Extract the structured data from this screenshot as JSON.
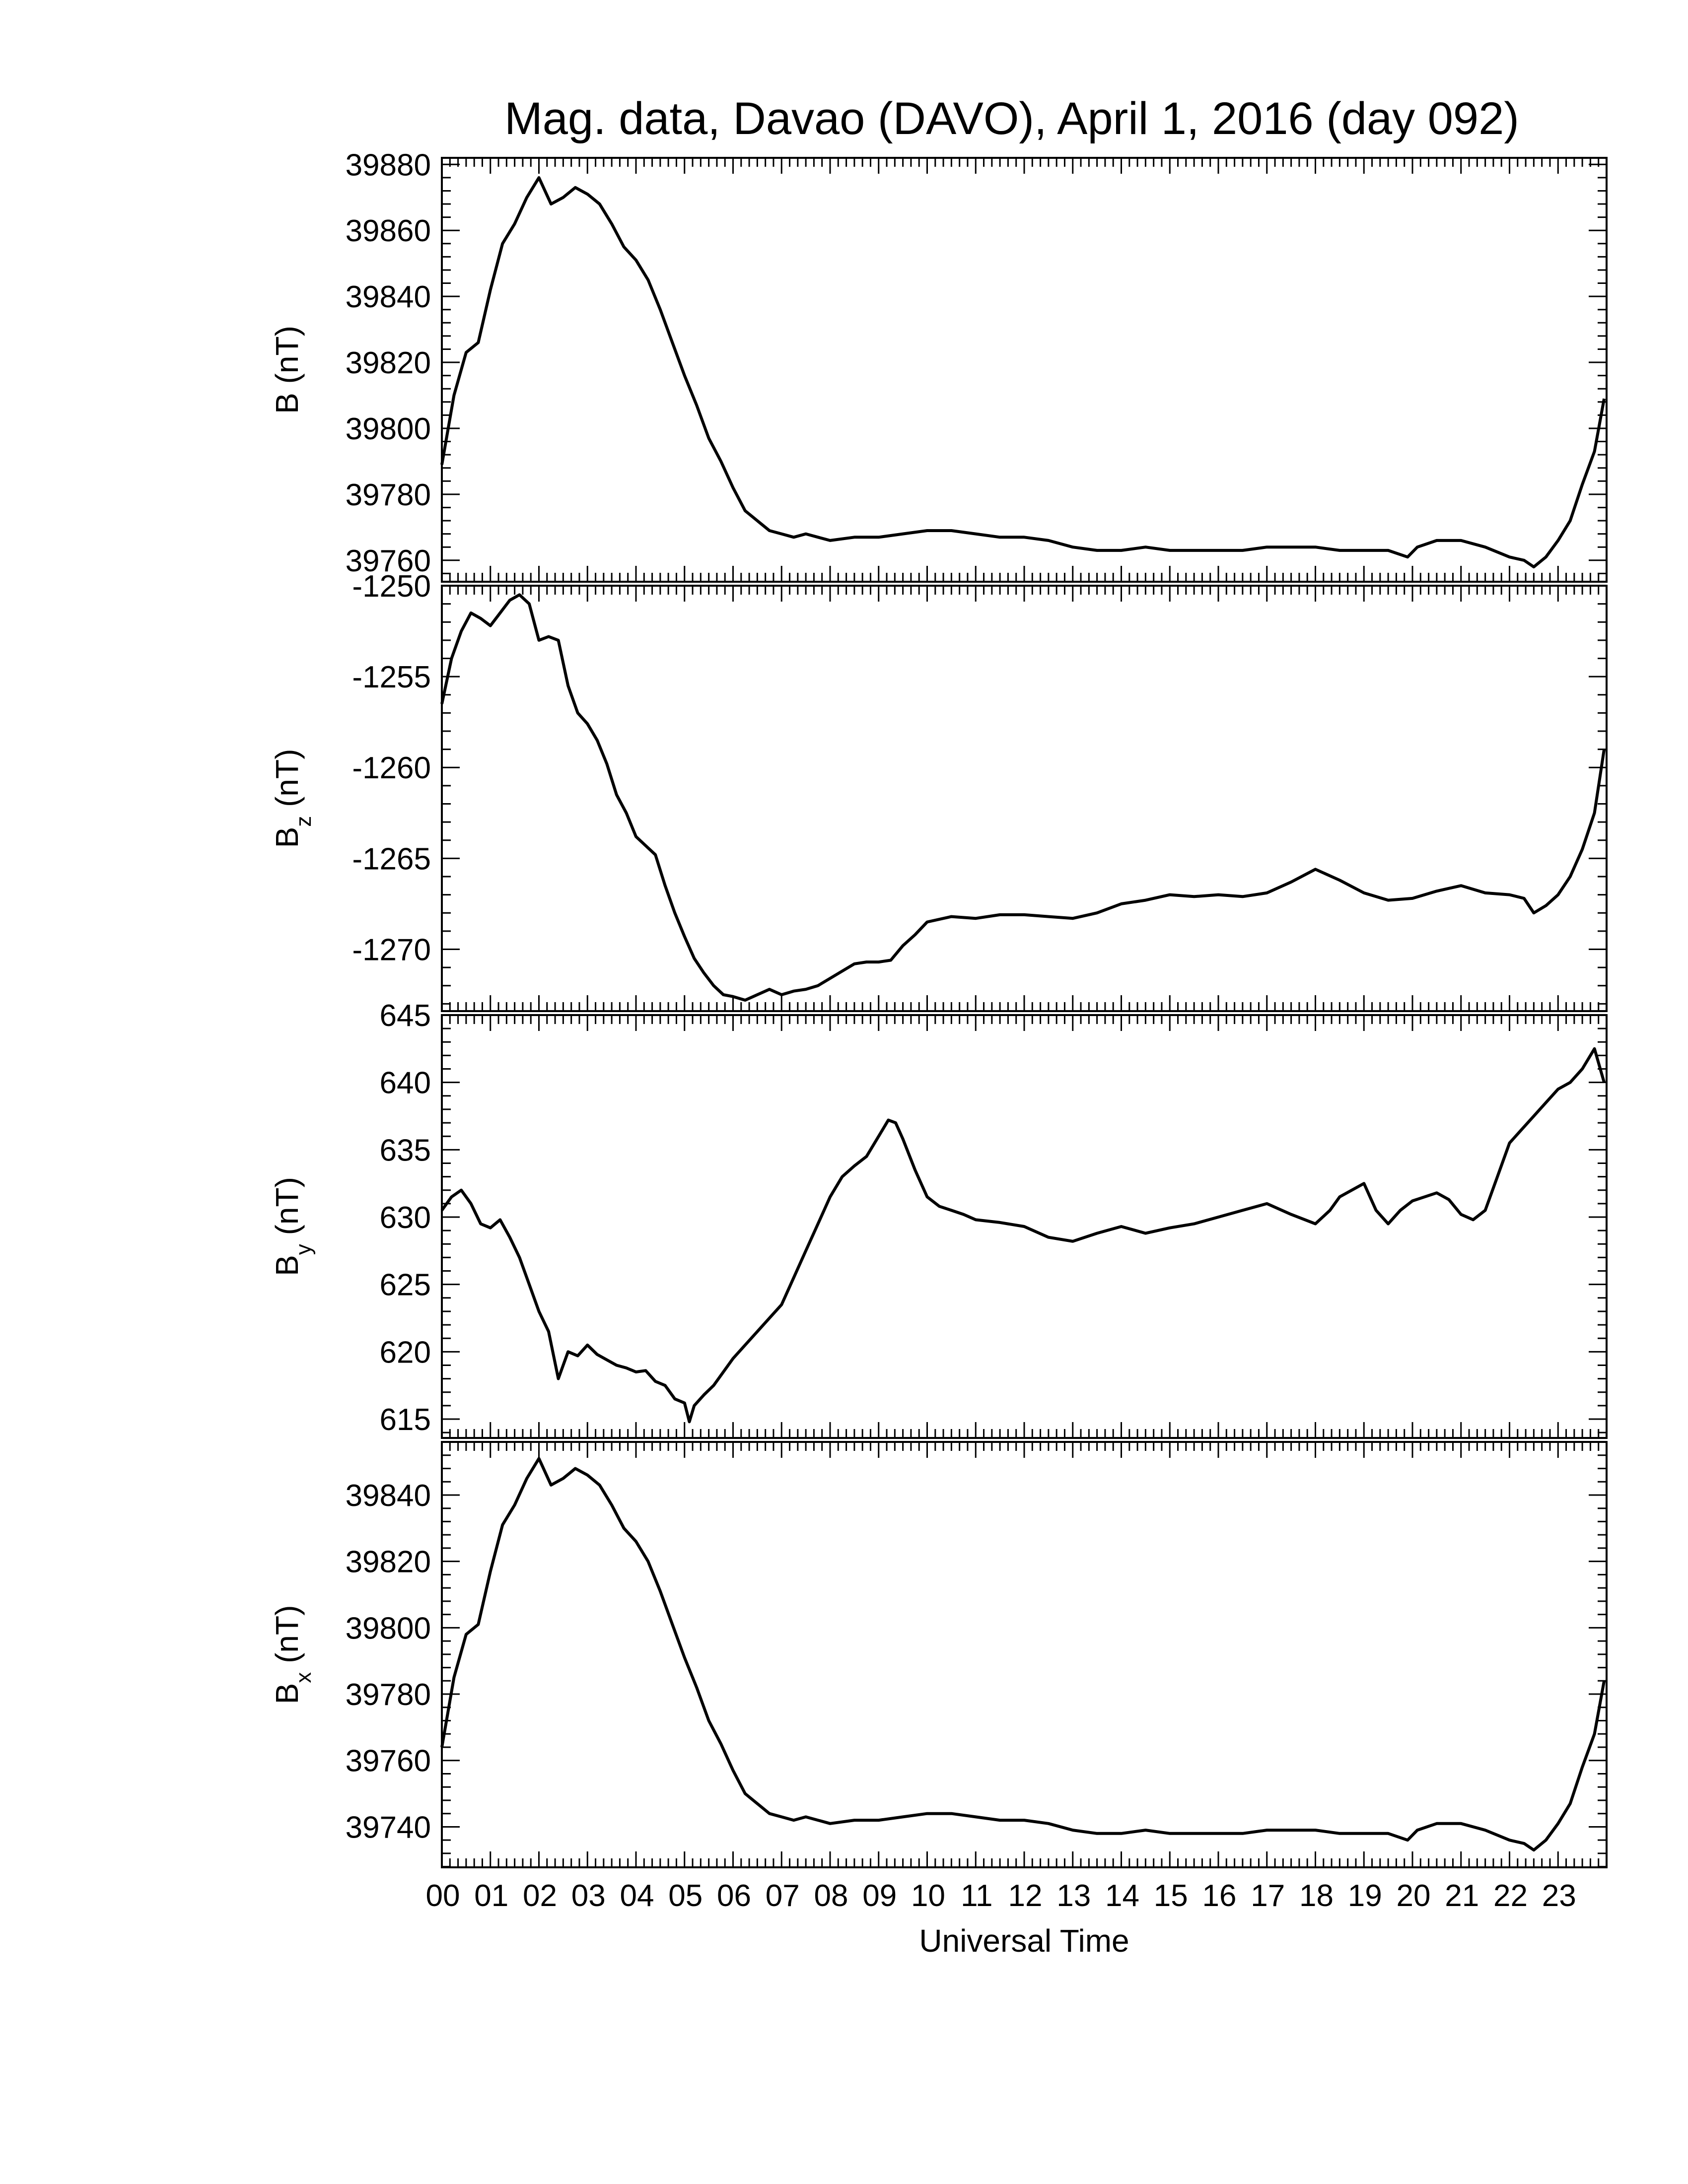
{
  "title": "Mag. data, Davao (DAVO), April 1, 2016 (day 092)",
  "xlabel": "Universal Time",
  "x_tick_labels": [
    "00",
    "01",
    "02",
    "03",
    "04",
    "05",
    "06",
    "07",
    "08",
    "09",
    "10",
    "11",
    "12",
    "13",
    "14",
    "15",
    "16",
    "17",
    "18",
    "19",
    "20",
    "21",
    "22",
    "23"
  ],
  "colors": {
    "line": "#000000",
    "axis": "#000000",
    "background": "#ffffff"
  },
  "chart_data": [
    {
      "type": "line",
      "name": "B",
      "ylabel_main": "B",
      "ylabel_sub": "",
      "ylabel_unit": " (nT)",
      "xlim": [
        0,
        24
      ],
      "ylim": [
        39753.5,
        39882
      ],
      "yticks": [
        39760,
        39780,
        39800,
        39820,
        39840,
        39860,
        39880
      ],
      "x": [
        0,
        0.25,
        0.5,
        0.75,
        1,
        1.25,
        1.5,
        1.75,
        2,
        2.25,
        2.5,
        2.75,
        3,
        3.25,
        3.5,
        3.75,
        4,
        4.25,
        4.5,
        4.75,
        5,
        5.25,
        5.5,
        5.75,
        6,
        6.25,
        6.5,
        6.75,
        7,
        7.25,
        7.5,
        7.75,
        8,
        8.5,
        9,
        9.5,
        10,
        10.5,
        11,
        11.5,
        12,
        12.5,
        13,
        13.5,
        14,
        14.5,
        15,
        15.5,
        16,
        16.5,
        17,
        17.5,
        18,
        18.5,
        19,
        19.5,
        19.9,
        20.1,
        20.5,
        21,
        21.5,
        22,
        22.3,
        22.5,
        22.75,
        23,
        23.25,
        23.5,
        23.75,
        23.95
      ],
      "y": [
        39789,
        39810,
        39823,
        39826,
        39842,
        39856,
        39862,
        39870,
        39876,
        39868,
        39870,
        39873,
        39871,
        39868,
        39862,
        39855,
        39851,
        39845,
        39836,
        39826,
        39816,
        39807,
        39797,
        39790,
        39782,
        39775,
        39772,
        39769,
        39768,
        39767,
        39768,
        39767,
        39766,
        39767,
        39767,
        39768,
        39769,
        39769,
        39768,
        39767,
        39767,
        39766,
        39764,
        39763,
        39763,
        39764,
        39763,
        39763,
        39763,
        39763,
        39764,
        39764,
        39764,
        39763,
        39763,
        39763,
        39761,
        39764,
        39766,
        39766,
        39764,
        39761,
        39760,
        39758,
        39761,
        39766,
        39772,
        39783,
        39793,
        39809
      ]
    },
    {
      "type": "line",
      "name": "Bz",
      "ylabel_main": "B",
      "ylabel_sub": "z",
      "ylabel_unit": " (nT)",
      "xlim": [
        0,
        24
      ],
      "ylim": [
        -1273.4,
        -1250
      ],
      "yticks": [
        -1270,
        -1265,
        -1260,
        -1255,
        -1250
      ],
      "ytick_labels": [
        "-1270",
        "-1265",
        "-1260",
        "-1255",
        "-1250"
      ],
      "x": [
        0,
        0.2,
        0.4,
        0.6,
        0.8,
        1,
        1.2,
        1.4,
        1.6,
        1.8,
        2,
        2.2,
        2.4,
        2.6,
        2.8,
        3,
        3.2,
        3.4,
        3.6,
        3.8,
        4,
        4.2,
        4.4,
        4.6,
        4.8,
        5,
        5.2,
        5.4,
        5.6,
        5.8,
        6,
        6.25,
        6.5,
        6.75,
        7,
        7.25,
        7.5,
        7.75,
        8,
        8.25,
        8.5,
        8.75,
        9,
        9.25,
        9.5,
        9.75,
        10,
        10.5,
        11,
        11.5,
        12,
        12.5,
        13,
        13.5,
        14,
        14.5,
        15,
        15.5,
        16,
        16.5,
        17,
        17.5,
        18,
        18.5,
        19,
        19.5,
        20,
        20.5,
        21,
        21.5,
        22,
        22.3,
        22.5,
        22.75,
        23,
        23.25,
        23.5,
        23.75,
        23.95
      ],
      "y": [
        -1256.5,
        -1254,
        -1252.5,
        -1251.5,
        -1251.8,
        -1252.2,
        -1251.5,
        -1250.8,
        -1250.5,
        -1251,
        -1253,
        -1252.8,
        -1253,
        -1255.5,
        -1257,
        -1257.6,
        -1258.5,
        -1259.8,
        -1261.5,
        -1262.5,
        -1263.8,
        -1264.3,
        -1264.8,
        -1266.5,
        -1268,
        -1269.3,
        -1270.5,
        -1271.3,
        -1272,
        -1272.5,
        -1272.6,
        -1272.8,
        -1272.5,
        -1272.2,
        -1272.5,
        -1272.3,
        -1272.2,
        -1272,
        -1271.6,
        -1271.2,
        -1270.8,
        -1270.7,
        -1270.7,
        -1270.6,
        -1269.8,
        -1269.2,
        -1268.5,
        -1268.2,
        -1268.3,
        -1268.1,
        -1268.1,
        -1268.2,
        -1268.3,
        -1268,
        -1267.5,
        -1267.3,
        -1267,
        -1267.1,
        -1267,
        -1267.1,
        -1266.9,
        -1266.3,
        -1265.6,
        -1266.2,
        -1266.9,
        -1267.3,
        -1267.2,
        -1266.8,
        -1266.5,
        -1266.9,
        -1267,
        -1267.2,
        -1268,
        -1267.6,
        -1267,
        -1266,
        -1264.5,
        -1262.5,
        -1259
      ]
    },
    {
      "type": "line",
      "name": "By",
      "ylabel_main": "B",
      "ylabel_sub": "y",
      "ylabel_unit": " (nT)",
      "xlim": [
        0,
        24
      ],
      "ylim": [
        613.6,
        645
      ],
      "yticks": [
        615,
        620,
        625,
        630,
        635,
        640,
        645
      ],
      "x": [
        0,
        0.2,
        0.4,
        0.6,
        0.8,
        1,
        1.2,
        1.4,
        1.6,
        1.8,
        2,
        2.2,
        2.4,
        2.6,
        2.8,
        3,
        3.2,
        3.4,
        3.6,
        3.8,
        4,
        4.2,
        4.4,
        4.6,
        4.8,
        5,
        5.1,
        5.2,
        5.4,
        5.6,
        5.8,
        6,
        6.25,
        6.5,
        6.75,
        7,
        7.25,
        7.5,
        7.75,
        8,
        8.25,
        8.5,
        8.75,
        9,
        9.2,
        9.35,
        9.5,
        9.75,
        10,
        10.25,
        10.5,
        10.75,
        11,
        11.5,
        12,
        12.5,
        13,
        13.5,
        14,
        14.5,
        15,
        15.5,
        16,
        16.5,
        17,
        17.5,
        18,
        18.3,
        18.5,
        18.75,
        19,
        19.25,
        19.5,
        19.75,
        20,
        20.25,
        20.5,
        20.75,
        21,
        21.25,
        21.5,
        21.75,
        22,
        22.25,
        22.5,
        22.75,
        23,
        23.25,
        23.5,
        23.75,
        23.95
      ],
      "y": [
        630.5,
        631.5,
        632,
        631,
        629.5,
        629.2,
        629.8,
        628.5,
        627,
        625,
        623,
        621.5,
        618,
        620,
        619.7,
        620.5,
        619.8,
        619.4,
        619,
        618.8,
        618.5,
        618.6,
        617.8,
        617.5,
        616.5,
        616.2,
        614.8,
        616,
        616.8,
        617.5,
        618.5,
        619.5,
        620.5,
        621.5,
        622.5,
        623.5,
        625.5,
        627.5,
        629.5,
        631.5,
        633,
        633.8,
        634.5,
        636,
        637.2,
        637,
        635.8,
        633.5,
        631.5,
        630.8,
        630.5,
        630.2,
        629.8,
        629.6,
        629.3,
        628.5,
        628.2,
        628.8,
        629.3,
        628.8,
        629.2,
        629.5,
        630,
        630.5,
        631,
        630.2,
        629.5,
        630.5,
        631.5,
        632,
        632.5,
        630.5,
        629.5,
        630.5,
        631.2,
        631.5,
        631.8,
        631.3,
        630.2,
        629.8,
        630.5,
        633,
        635.5,
        636.5,
        637.5,
        638.5,
        639.5,
        640,
        641,
        642.5,
        640
      ]
    },
    {
      "type": "line",
      "name": "Bx",
      "ylabel_main": "B",
      "ylabel_sub": "x",
      "ylabel_unit": " (nT)",
      "xlim": [
        0,
        24
      ],
      "ylim": [
        39727.8,
        39856
      ],
      "yticks": [
        39740,
        39760,
        39780,
        39800,
        39820,
        39840
      ],
      "x": [
        0,
        0.25,
        0.5,
        0.75,
        1,
        1.25,
        1.5,
        1.75,
        2,
        2.25,
        2.5,
        2.75,
        3,
        3.25,
        3.5,
        3.75,
        4,
        4.25,
        4.5,
        4.75,
        5,
        5.25,
        5.5,
        5.75,
        6,
        6.25,
        6.5,
        6.75,
        7,
        7.25,
        7.5,
        7.75,
        8,
        8.5,
        9,
        9.5,
        10,
        10.5,
        11,
        11.5,
        12,
        12.5,
        13,
        13.5,
        14,
        14.5,
        15,
        15.5,
        16,
        16.5,
        17,
        17.5,
        18,
        18.5,
        19,
        19.5,
        19.9,
        20.1,
        20.5,
        21,
        21.5,
        22,
        22.3,
        22.5,
        22.75,
        23,
        23.25,
        23.5,
        23.75,
        23.95
      ],
      "y": [
        39764,
        39785,
        39798,
        39801,
        39817,
        39831,
        39837,
        39845,
        39851,
        39843,
        39845,
        39848,
        39846,
        39843,
        39837,
        39830,
        39826,
        39820,
        39811,
        39801,
        39791,
        39782,
        39772,
        39765,
        39757,
        39750,
        39747,
        39744,
        39743,
        39742,
        39743,
        39742,
        39741,
        39742,
        39742,
        39743,
        39744,
        39744,
        39743,
        39742,
        39742,
        39741,
        39739,
        39738,
        39738,
        39739,
        39738,
        39738,
        39738,
        39738,
        39739,
        39739,
        39739,
        39738,
        39738,
        39738,
        39736,
        39739,
        39741,
        39741,
        39739,
        39736,
        39735,
        39733,
        39736,
        39741,
        39747,
        39758,
        39768,
        39784
      ]
    }
  ]
}
